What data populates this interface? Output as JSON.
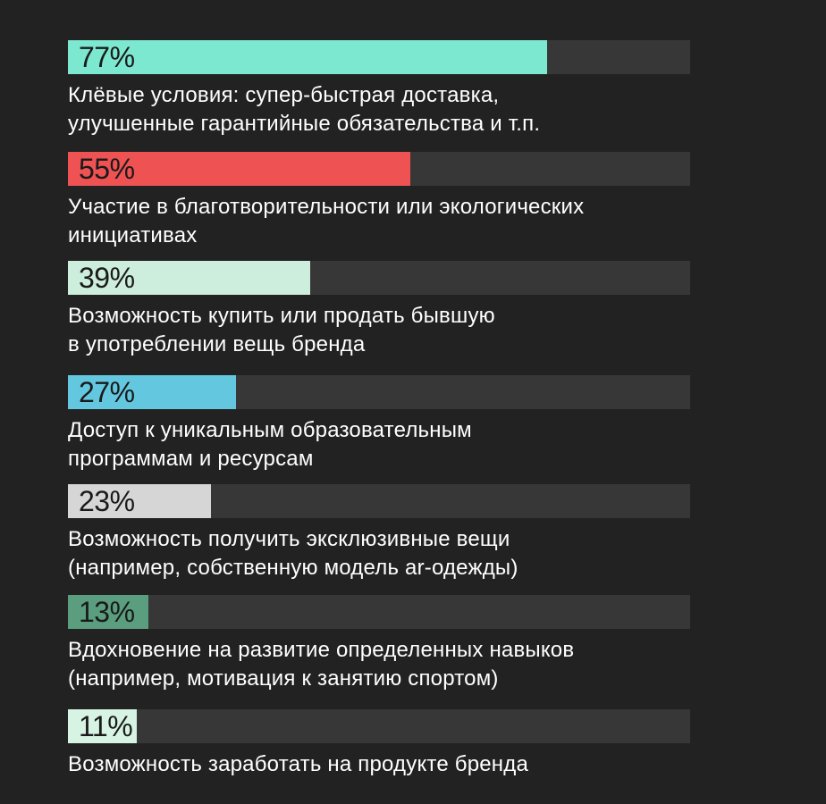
{
  "chart_data": {
    "type": "bar",
    "orientation": "horizontal",
    "xlim": [
      0,
      100
    ],
    "grid": false,
    "bars": [
      {
        "value": 77,
        "value_label": "77%",
        "color": "#7de8d0",
        "label": "Клёвые условия: супер-быстрая доставка,\nулучшенные гарантийные обязательства и т.п."
      },
      {
        "value": 55,
        "value_label": "55%",
        "color": "#ee5253",
        "label": "Участие в благотворительности или экологических\nинициативах"
      },
      {
        "value": 39,
        "value_label": "39%",
        "color": "#cdeedd",
        "label": "Возможность купить или продать бывшую\nв употреблении вещь бренда"
      },
      {
        "value": 27,
        "value_label": "27%",
        "color": "#63c8df",
        "label": "Доступ к уникальным образовательным\nпрограммам и ресурсам"
      },
      {
        "value": 23,
        "value_label": "23%",
        "color": "#d6d6d6",
        "label": "Возможность получить эксклюзивные вещи\n(например, собственную модель ar-одежды)"
      },
      {
        "value": 13,
        "value_label": "13%",
        "color": "#5a9e7f",
        "label": "Вдохновение на развитие определенных навыков\n(например, мотивация к занятию спортом)"
      },
      {
        "value": 11,
        "value_label": "11%",
        "color": "#d6f3e4",
        "label": "Возможность заработать на продукте бренда"
      }
    ]
  },
  "colors": {
    "background": "#222222",
    "track": "#373737",
    "value_text": "#1a1a1a",
    "label_text": "#ffffff"
  }
}
